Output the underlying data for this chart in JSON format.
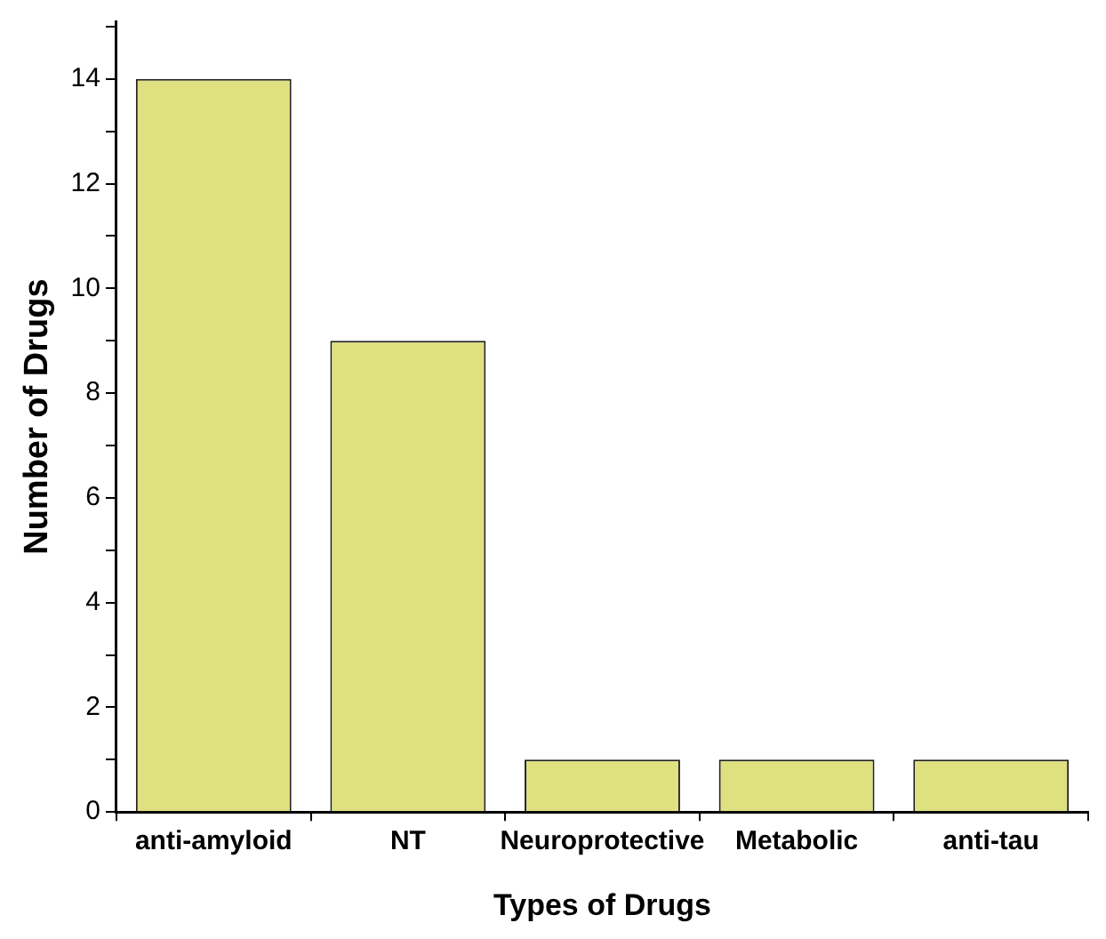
{
  "chart_data": {
    "type": "bar",
    "xlabel": "Types of Drugs",
    "ylabel": "Number of Drugs",
    "categories": [
      "anti-amyloid",
      "NT",
      "Neuroprotective",
      "Metabolic",
      "anti-tau"
    ],
    "values": [
      14,
      9,
      1,
      1,
      1
    ],
    "color": "#dfe07f",
    "ylim": [
      0,
      15.1
    ],
    "yticks": [
      0,
      {
        "value": 1,
        "label": null
      },
      2,
      {
        "value": 3,
        "label": null
      },
      4,
      {
        "value": 5,
        "label": null
      },
      6,
      {
        "value": 7,
        "label": null
      },
      8,
      {
        "value": 9,
        "label": null
      },
      10,
      {
        "value": 11,
        "label": null
      },
      12,
      {
        "value": 13,
        "label": null
      },
      14,
      {
        "value": 15,
        "label": null
      }
    ],
    "grid": false,
    "legend": false
  }
}
